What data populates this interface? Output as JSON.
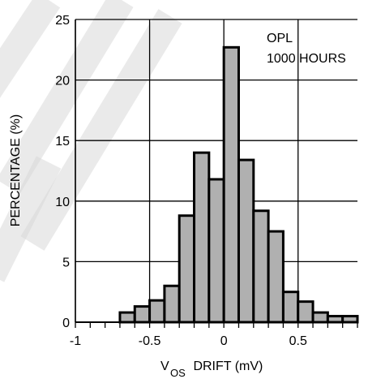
{
  "chart_data": {
    "type": "bar",
    "ylabel": "PERCENTAGE (%)",
    "xlabel_main": "V",
    "xlabel_sub": "OS",
    "xlabel_rest": " DRIFT (mV)",
    "annotation_lines": [
      "OPL",
      "1000 HOURS"
    ],
    "xlim": [
      -1,
      0.9
    ],
    "ylim": [
      0,
      25
    ],
    "xticks": [
      -1,
      -0.5,
      0,
      0.5
    ],
    "xtick_labels": [
      "-1",
      "-0.5",
      "0",
      "0.5"
    ],
    "yticks": [
      0,
      5,
      10,
      15,
      20,
      25
    ],
    "ytick_labels": [
      "0",
      "5",
      "10",
      "15",
      "20",
      "25"
    ],
    "bin_width": 0.1,
    "bins": [
      {
        "x0": -0.7,
        "value": 0.8
      },
      {
        "x0": -0.6,
        "value": 1.3
      },
      {
        "x0": -0.5,
        "value": 1.8
      },
      {
        "x0": -0.4,
        "value": 3.0
      },
      {
        "x0": -0.3,
        "value": 8.8
      },
      {
        "x0": -0.2,
        "value": 14.0
      },
      {
        "x0": -0.1,
        "value": 11.8
      },
      {
        "x0": 0.0,
        "value": 22.7
      },
      {
        "x0": 0.1,
        "value": 13.4
      },
      {
        "x0": 0.2,
        "value": 9.2
      },
      {
        "x0": 0.3,
        "value": 7.5
      },
      {
        "x0": 0.4,
        "value": 2.5
      },
      {
        "x0": 0.5,
        "value": 1.7
      },
      {
        "x0": 0.6,
        "value": 0.8
      },
      {
        "x0": 0.7,
        "value": 0.5
      },
      {
        "x0": 0.8,
        "value": 0.5
      }
    ],
    "grid": true,
    "colors": {
      "bar_fill": "#b0b0b0",
      "bar_stroke": "#000000",
      "watermark": "#d9d9d9"
    }
  }
}
